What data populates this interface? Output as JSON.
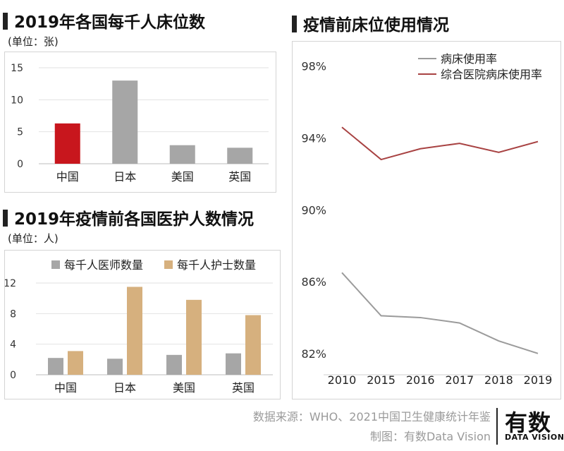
{
  "chart_data": [
    {
      "type": "bar",
      "title": "2019年各国每千人床位数",
      "subtitle": "(单位：张)",
      "categories": [
        "中国",
        "日本",
        "美国",
        "英国"
      ],
      "values": [
        6.3,
        13.0,
        2.9,
        2.5
      ],
      "highlight_index": 0,
      "colors": {
        "bar": "#a6a6a6",
        "highlight": "#c8161d"
      },
      "yticks": [
        "0",
        "5",
        "10",
        "15"
      ],
      "ylim": [
        0,
        15
      ],
      "grid": true
    },
    {
      "type": "bar",
      "title": "2019年疫情前各国医护人数情况",
      "subtitle": "(单位：人)",
      "categories": [
        "中国",
        "日本",
        "美国",
        "英国"
      ],
      "series": [
        {
          "name": "每千人医师数量",
          "values": [
            2.2,
            2.1,
            2.6,
            2.8
          ],
          "color": "#a6a6a6"
        },
        {
          "name": "每千人护士数量",
          "values": [
            3.1,
            11.5,
            9.8,
            7.8
          ],
          "color": "#d6b07e"
        }
      ],
      "yticks": [
        "0",
        "4",
        "8",
        "12"
      ],
      "ylim": [
        0,
        12
      ],
      "grid": true,
      "legend": "top"
    },
    {
      "type": "line",
      "title": "疫情前床位使用情况",
      "x": [
        "2010",
        "2015",
        "2016",
        "2017",
        "2018",
        "2019"
      ],
      "series": [
        {
          "name": "病床使用率",
          "values": [
            86.5,
            84.1,
            84.0,
            83.7,
            82.7,
            82.0
          ],
          "color": "#9b9b9b"
        },
        {
          "name": "综合医院病床使用率",
          "values": [
            94.6,
            92.8,
            93.4,
            93.7,
            93.2,
            93.8
          ],
          "color": "#a84242"
        }
      ],
      "yticks": [
        "82%",
        "86%",
        "90%",
        "94%",
        "98%"
      ],
      "ylim": [
        80.5,
        98.5
      ],
      "grid": false,
      "legend": "top-right"
    }
  ],
  "footer": {
    "source": "数据来源：WHO、2021中国卫生健康统计年鉴",
    "credit": "制图：有数Data Vision",
    "logo_main": "有数",
    "logo_sub": "DATA VISION"
  }
}
